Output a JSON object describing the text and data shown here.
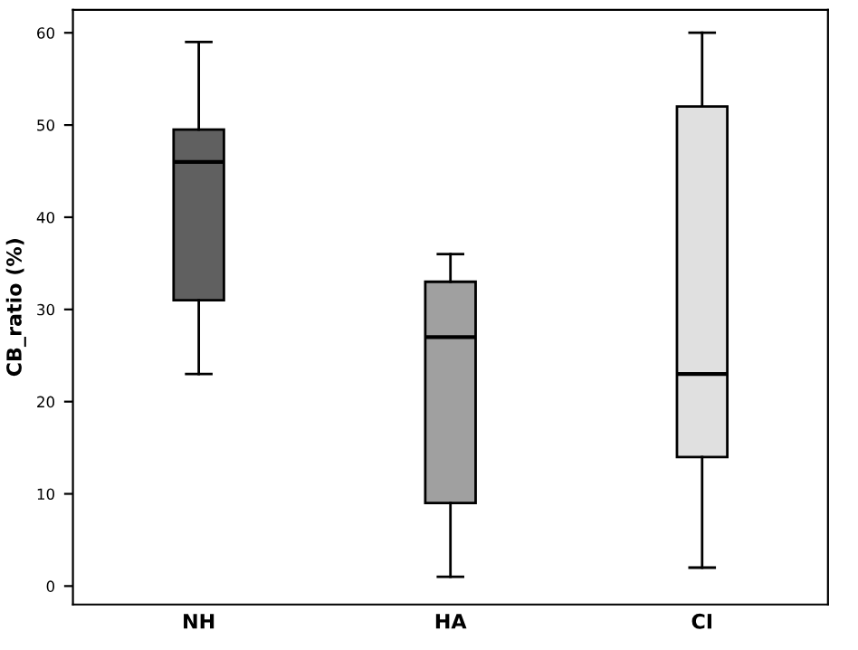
{
  "chart_data": {
    "type": "box",
    "ylabel": "CB_ratio (%)",
    "categories": [
      "NH",
      "HA",
      "CI"
    ],
    "colors": [
      "#606060",
      "#a0a0a0",
      "#e0e0e0"
    ],
    "boxes": [
      {
        "low": 23,
        "q1": 31,
        "median": 46,
        "q3": 49.5,
        "high": 59
      },
      {
        "low": 1,
        "q1": 9,
        "median": 27,
        "q3": 33,
        "high": 36
      },
      {
        "low": 2,
        "q1": 14,
        "median": 23,
        "q3": 52,
        "high": 60
      }
    ],
    "ylim": [
      -2,
      62.5
    ],
    "yticks": [
      0,
      10,
      20,
      30,
      40,
      50,
      60
    ],
    "grid": false
  }
}
